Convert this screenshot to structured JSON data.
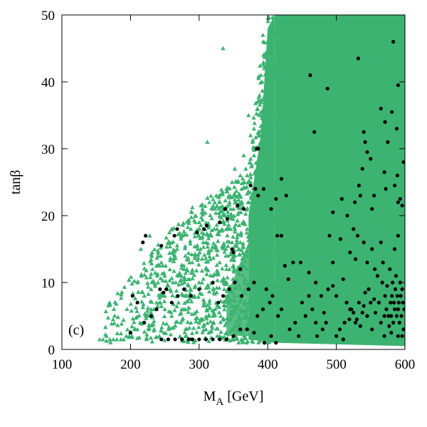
{
  "chart_data": {
    "type": "scatter",
    "panel_label": "(c)",
    "xlabel": "M",
    "xlabel_sub": "A",
    "xlabel_unit": " [GeV]",
    "ylabel": "tanβ",
    "xlim": [
      100,
      600
    ],
    "ylim": [
      0,
      50
    ],
    "x_ticks": [
      100,
      200,
      300,
      400,
      500,
      600
    ],
    "y_ticks": [
      0,
      10,
      20,
      30,
      40,
      50
    ],
    "grid": false,
    "legend": "none",
    "colors": {
      "green": "#3cb371",
      "black": "#000000"
    },
    "series": [
      {
        "marker": "triangle",
        "color": "#3cb371",
        "description_region": "dense band for M_A >= 410 GeV over tanβ 1-50; sparser triangles between 160 and 410 GeV with upper edge rising from about tanβ 5 at 160 GeV to 50 near 400 GeV",
        "values": [
          [
            400,
            46
          ],
          [
            405,
            48
          ],
          [
            398,
            44
          ],
          [
            395,
            42
          ],
          [
            392,
            40
          ],
          [
            388,
            38
          ],
          [
            385,
            36
          ],
          [
            380,
            33
          ],
          [
            378,
            31
          ],
          [
            374,
            28
          ],
          [
            370,
            26
          ],
          [
            366,
            25
          ],
          [
            362,
            24
          ],
          [
            358,
            23
          ],
          [
            354,
            22
          ],
          [
            350,
            21
          ],
          [
            346,
            21
          ],
          [
            342,
            20
          ],
          [
            338,
            20
          ],
          [
            334,
            19
          ],
          [
            330,
            19
          ],
          [
            326,
            18
          ],
          [
            322,
            18
          ],
          [
            318,
            17
          ],
          [
            314,
            17
          ],
          [
            310,
            16
          ],
          [
            306,
            16
          ],
          [
            302,
            15
          ],
          [
            298,
            15
          ],
          [
            294,
            14
          ],
          [
            290,
            13
          ],
          [
            286,
            13
          ],
          [
            282,
            12
          ],
          [
            278,
            12
          ],
          [
            274,
            11
          ],
          [
            270,
            11
          ],
          [
            266,
            10
          ],
          [
            262,
            10
          ],
          [
            258,
            9
          ],
          [
            254,
            9
          ],
          [
            250,
            8
          ],
          [
            246,
            8
          ],
          [
            242,
            7
          ],
          [
            238,
            7
          ],
          [
            234,
            6
          ],
          [
            230,
            6
          ],
          [
            226,
            5
          ],
          [
            222,
            5
          ],
          [
            218,
            4
          ],
          [
            214,
            4
          ],
          [
            210,
            3
          ],
          [
            206,
            3
          ],
          [
            202,
            2
          ],
          [
            198,
            2
          ],
          [
            194,
            2
          ],
          [
            190,
            1.5
          ],
          [
            186,
            1.5
          ],
          [
            180,
            1.5
          ],
          [
            175,
            1.5
          ],
          [
            165,
            2
          ],
          [
            160,
            1.5
          ],
          [
            155,
            1.5
          ],
          [
            312,
            31
          ],
          [
            335,
            45
          ],
          [
            372,
            35
          ],
          [
            375,
            32
          ],
          [
            380,
            29
          ],
          [
            385,
            37
          ],
          [
            390,
            41
          ],
          [
            393,
            47
          ],
          [
            348,
            25
          ],
          [
            352,
            27
          ],
          [
            360,
            26
          ],
          [
            365,
            29
          ],
          [
            368,
            27
          ],
          [
            372,
            25
          ],
          [
            228,
            17
          ],
          [
            215,
            15
          ],
          [
            232,
            12
          ],
          [
            240,
            14
          ],
          [
            245,
            13
          ],
          [
            250,
            11
          ],
          [
            255,
            16
          ],
          [
            260,
            18
          ],
          [
            268,
            15
          ],
          [
            275,
            17
          ],
          [
            280,
            14
          ],
          [
            288,
            18
          ],
          [
            295,
            20
          ],
          [
            300,
            19
          ],
          [
            305,
            21
          ],
          [
            315,
            22
          ],
          [
            320,
            21
          ],
          [
            325,
            23
          ],
          [
            330,
            22
          ],
          [
            340,
            24
          ],
          [
            345,
            23
          ],
          [
            355,
            25
          ],
          [
            210,
            10
          ],
          [
            220,
            8
          ],
          [
            230,
            9
          ],
          [
            240,
            10
          ],
          [
            250,
            6
          ],
          [
            260,
            5
          ],
          [
            270,
            7
          ],
          [
            280,
            9
          ],
          [
            290,
            8
          ],
          [
            300,
            10
          ],
          [
            310,
            12
          ],
          [
            320,
            11
          ],
          [
            330,
            13
          ],
          [
            340,
            12
          ],
          [
            350,
            14
          ],
          [
            360,
            16
          ],
          [
            370,
            18
          ],
          [
            380,
            20
          ],
          [
            390,
            22
          ],
          [
            400,
            24
          ],
          [
            300,
            4
          ],
          [
            310,
            3
          ],
          [
            320,
            5
          ],
          [
            330,
            2
          ],
          [
            340,
            4
          ],
          [
            350,
            3
          ],
          [
            360,
            6
          ],
          [
            370,
            5
          ],
          [
            380,
            7
          ],
          [
            390,
            9
          ]
        ]
      },
      {
        "marker": "circle",
        "color": "#000000",
        "values": [
          [
            583,
            46
          ],
          [
            532,
            43.5
          ],
          [
            462,
            41
          ],
          [
            487,
            39
          ],
          [
            590,
            39.5
          ],
          [
            468,
            32.5
          ],
          [
            540,
            32.5
          ],
          [
            542,
            31
          ],
          [
            545,
            29.5
          ],
          [
            565,
            36
          ],
          [
            571,
            34
          ],
          [
            581,
            35.5
          ],
          [
            588,
            33
          ],
          [
            575,
            31
          ],
          [
            598,
            28
          ],
          [
            550,
            28.5
          ],
          [
            538,
            27
          ],
          [
            570,
            26.5
          ],
          [
            589,
            26
          ],
          [
            585,
            24.5
          ],
          [
            572,
            24
          ],
          [
            555,
            23
          ],
          [
            533,
            24.5
          ],
          [
            535,
            23
          ],
          [
            527,
            22
          ],
          [
            590,
            22
          ],
          [
            593,
            22.5
          ],
          [
            596,
            21.5
          ],
          [
            552,
            21
          ],
          [
            384,
            30
          ],
          [
            386,
            30
          ],
          [
            375,
            24.5
          ],
          [
            382,
            24
          ],
          [
            386,
            23
          ],
          [
            394,
            24
          ],
          [
            420,
            25.5
          ],
          [
            427,
            23
          ],
          [
            412,
            22.5
          ],
          [
            405,
            21
          ],
          [
            365,
            21
          ],
          [
            356,
            21.5
          ],
          [
            338,
            21
          ],
          [
            330,
            19
          ],
          [
            341,
            19.5
          ],
          [
            311,
            18.5
          ],
          [
            307,
            18
          ],
          [
            297,
            17.5
          ],
          [
            268,
            18
          ],
          [
            264,
            17
          ],
          [
            222,
            17
          ],
          [
            218,
            16
          ],
          [
            245,
            15.5
          ],
          [
            348,
            15
          ],
          [
            495,
            20.5
          ],
          [
            508,
            22.5
          ],
          [
            516,
            20
          ],
          [
            525,
            18
          ],
          [
            531,
            17
          ],
          [
            506,
            16.5
          ],
          [
            490,
            17
          ],
          [
            420,
            17
          ],
          [
            414,
            17
          ],
          [
            470,
            10
          ],
          [
            478,
            8
          ],
          [
            482,
            5.5
          ],
          [
            488,
            9
          ],
          [
            495,
            9.5
          ],
          [
            500,
            8
          ],
          [
            510,
            10.5
          ],
          [
            515,
            7
          ],
          [
            519,
            4.5
          ],
          [
            520,
            6
          ],
          [
            522,
            6
          ],
          [
            525,
            5.5
          ],
          [
            528,
            4
          ],
          [
            530,
            4.5
          ],
          [
            533,
            7
          ],
          [
            535,
            3.5
          ],
          [
            538,
            5.5
          ],
          [
            540,
            6.5
          ],
          [
            542,
            8.5
          ],
          [
            545,
            5
          ],
          [
            547,
            9
          ],
          [
            550,
            7
          ],
          [
            552,
            3
          ],
          [
            555,
            7.5
          ],
          [
            557,
            5.5
          ],
          [
            560,
            11
          ],
          [
            562,
            7
          ],
          [
            565,
            4
          ],
          [
            567,
            10
          ],
          [
            568,
            13
          ],
          [
            570,
            5
          ],
          [
            571,
            8
          ],
          [
            573,
            6
          ],
          [
            574,
            9.5
          ],
          [
            576,
            5
          ],
          [
            577,
            3.5
          ],
          [
            578,
            12
          ],
          [
            579,
            7
          ],
          [
            580,
            5
          ],
          [
            581,
            8
          ],
          [
            582,
            10
          ],
          [
            583,
            4
          ],
          [
            584,
            7
          ],
          [
            585,
            6
          ],
          [
            586,
            9
          ],
          [
            587,
            11
          ],
          [
            588,
            5
          ],
          [
            589,
            8
          ],
          [
            590,
            6
          ],
          [
            591,
            7
          ],
          [
            592,
            4
          ],
          [
            593,
            10
          ],
          [
            594,
            8
          ],
          [
            595,
            5
          ],
          [
            596,
            9
          ],
          [
            597,
            7
          ],
          [
            598,
            3
          ],
          [
            599,
            6
          ],
          [
            556,
            12
          ],
          [
            545,
            13
          ],
          [
            528,
            13.5
          ],
          [
            520,
            14.5
          ],
          [
            540,
            16
          ],
          [
            552,
            15
          ],
          [
            565,
            16
          ],
          [
            585,
            15
          ],
          [
            590,
            17
          ],
          [
            495,
            13
          ],
          [
            460,
            11.5
          ],
          [
            448,
            13
          ],
          [
            430,
            10.5
          ],
          [
            437,
            13
          ],
          [
            425,
            12.5
          ],
          [
            450,
            7
          ],
          [
            455,
            5
          ],
          [
            460,
            8
          ],
          [
            465,
            6
          ],
          [
            470,
            4
          ],
          [
            472,
            2
          ],
          [
            480,
            3
          ],
          [
            485,
            4
          ],
          [
            500,
            2
          ],
          [
            505,
            3
          ],
          [
            510,
            1.5
          ],
          [
            512,
            4
          ],
          [
            440,
            4
          ],
          [
            445,
            2
          ],
          [
            432,
            3
          ],
          [
            420,
            6
          ],
          [
            415,
            5
          ],
          [
            407,
            8
          ],
          [
            403,
            7
          ],
          [
            398,
            9
          ],
          [
            393,
            6
          ],
          [
            385,
            5
          ],
          [
            380,
            10
          ],
          [
            372,
            9
          ],
          [
            362,
            8
          ],
          [
            352,
            10
          ],
          [
            344,
            9
          ],
          [
            335,
            8
          ],
          [
            328,
            7
          ],
          [
            320,
            10
          ],
          [
            300,
            9
          ],
          [
            288,
            8
          ],
          [
            278,
            9
          ],
          [
            269,
            8
          ],
          [
            260,
            7
          ],
          [
            252,
            9
          ],
          [
            248,
            8.5
          ],
          [
            243,
            9
          ],
          [
            238,
            6
          ],
          [
            230,
            5
          ],
          [
            220,
            4
          ],
          [
            210,
            7
          ],
          [
            203,
            8
          ],
          [
            200,
            2.5
          ],
          [
            245,
            1.5
          ],
          [
            255,
            1.5
          ],
          [
            265,
            1.5
          ],
          [
            275,
            1.5
          ],
          [
            285,
            1.5
          ],
          [
            290,
            1.5
          ],
          [
            300,
            1.5
          ],
          [
            310,
            1.5
          ],
          [
            320,
            1.5
          ],
          [
            330,
            1.5
          ],
          [
            340,
            1.5
          ],
          [
            350,
            2
          ],
          [
            360,
            3
          ],
          [
            370,
            3
          ],
          [
            380,
            2.5
          ],
          [
            395,
            1
          ],
          [
            405,
            2
          ],
          [
            412,
            1
          ],
          [
            570,
            2
          ],
          [
            580,
            2.5
          ],
          [
            590,
            2
          ],
          [
            596,
            2
          ],
          [
            360,
            12
          ],
          [
            350,
            14.5
          ]
        ]
      }
    ]
  }
}
